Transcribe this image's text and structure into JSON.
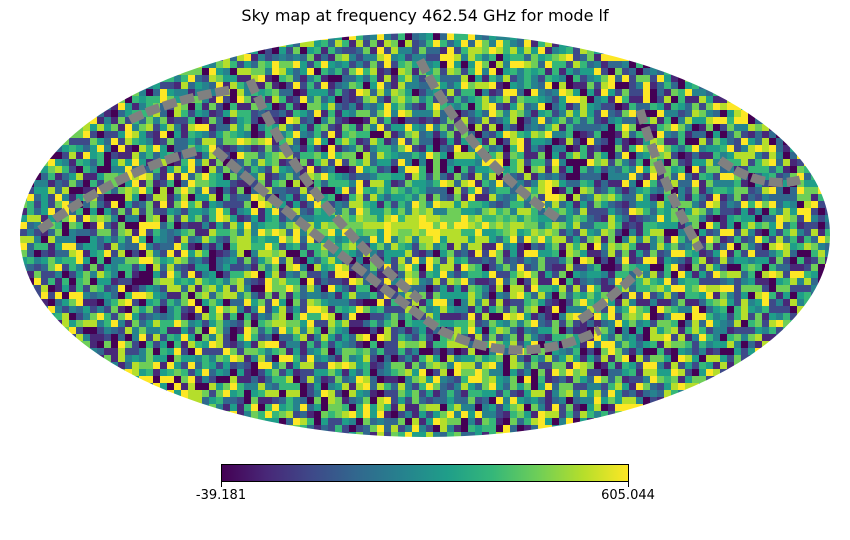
{
  "chart_data": {
    "type": "heatmap",
    "projection": "mollweide",
    "title": "Sky map at frequency 462.54 GHz for mode lf",
    "colormap": "viridis",
    "colorbar": {
      "min": -39.181,
      "max": 605.044,
      "min_label": "-39.181",
      "max_label": "605.044",
      "orientation": "horizontal",
      "placement": "bottom"
    },
    "masked_color": "#808080",
    "features": [
      "random noise pixels over the full sky",
      "bright yellow band along the galactic plane near the center",
      "grey masked scan-strip bands"
    ]
  }
}
